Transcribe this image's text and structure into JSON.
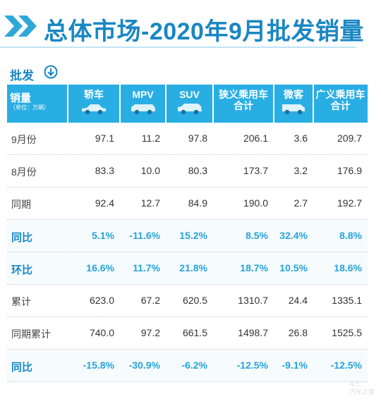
{
  "header": {
    "title": "总体市场-2020年9月批发销量",
    "subtitle": "批发"
  },
  "chart_data": {
    "type": "table",
    "corner_label": "销量",
    "corner_unit": "（单位：万辆）",
    "columns": [
      {
        "lines": [
          "轿车"
        ],
        "icon": "sedan-icon"
      },
      {
        "lines": [
          "MPV"
        ],
        "icon": "mpv-icon"
      },
      {
        "lines": [
          "SUV"
        ],
        "icon": "suv-icon"
      },
      {
        "lines": [
          "狭义乘用车",
          "合计"
        ],
        "icon": ""
      },
      {
        "lines": [
          "微客"
        ],
        "icon": "minivan-icon"
      },
      {
        "lines": [
          "广义乘用车",
          "合计"
        ],
        "icon": ""
      }
    ],
    "rows": [
      {
        "label": "9月份",
        "highlight": false,
        "values": [
          "97.1",
          "11.2",
          "97.8",
          "206.1",
          "3.6",
          "209.7"
        ]
      },
      {
        "label": "8月份",
        "highlight": false,
        "values": [
          "83.3",
          "10.0",
          "80.3",
          "173.7",
          "3.2",
          "176.9"
        ]
      },
      {
        "label": "同期",
        "highlight": false,
        "values": [
          "92.4",
          "12.7",
          "84.9",
          "190.0",
          "2.7",
          "192.7"
        ]
      },
      {
        "label": "同比",
        "highlight": true,
        "values": [
          "5.1%",
          "-11.6%",
          "15.2%",
          "8.5%",
          "32.4%",
          "8.8%"
        ]
      },
      {
        "label": "环比",
        "highlight": true,
        "values": [
          "16.6%",
          "11.7%",
          "21.8%",
          "18.7%",
          "10.5%",
          "18.6%"
        ]
      },
      {
        "label": "累计",
        "highlight": false,
        "values": [
          "623.0",
          "67.2",
          "620.5",
          "1310.7",
          "24.4",
          "1335.1"
        ]
      },
      {
        "label": "同期累计",
        "highlight": false,
        "values": [
          "740.0",
          "97.2",
          "661.5",
          "1498.7",
          "26.8",
          "1525.5"
        ]
      },
      {
        "label": "同比",
        "highlight": true,
        "values": [
          "-15.8%",
          "-30.9%",
          "-6.2%",
          "-12.5%",
          "-9.1%",
          "-12.5%"
        ]
      }
    ]
  },
  "colors": {
    "accent": "#1a87c2",
    "header_bg": "#29aee4",
    "chevron": "#2fa8d8"
  },
  "watermark": [
    "车仁",
    "汽车之家"
  ]
}
